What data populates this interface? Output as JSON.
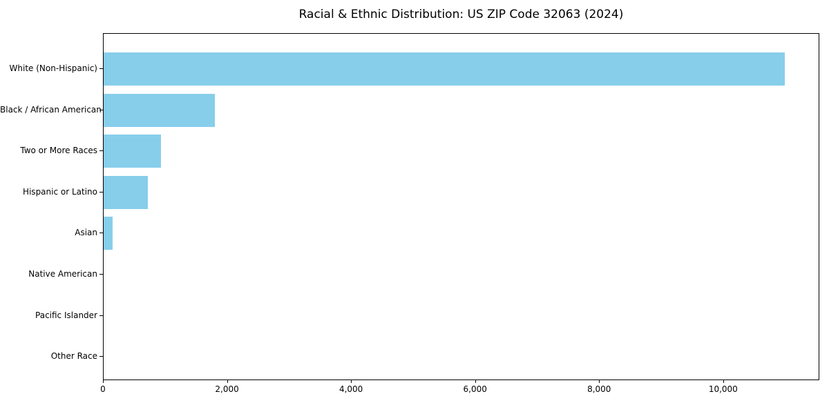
{
  "chart_data": {
    "type": "bar",
    "orientation": "horizontal",
    "title": "Racial & Ethnic Distribution: US ZIP Code 32063 (2024)",
    "xlabel": "",
    "ylabel": "",
    "categories": [
      "White (Non-Hispanic)",
      "Black / African American",
      "Two or More Races",
      "Hispanic or Latino",
      "Asian",
      "Native American",
      "Pacific Islander",
      "Other Race"
    ],
    "values": [
      11000,
      1800,
      930,
      710,
      145,
      0,
      0,
      0
    ],
    "xlim": [
      0,
      11550
    ],
    "x_tick_values": [
      0,
      2000,
      4000,
      6000,
      8000,
      10000
    ],
    "x_tick_labels": [
      "0",
      "2,000",
      "4,000",
      "6,000",
      "8,000",
      "10,000"
    ],
    "bar_color": "#87CEEB",
    "grid": false,
    "legend": "none"
  }
}
